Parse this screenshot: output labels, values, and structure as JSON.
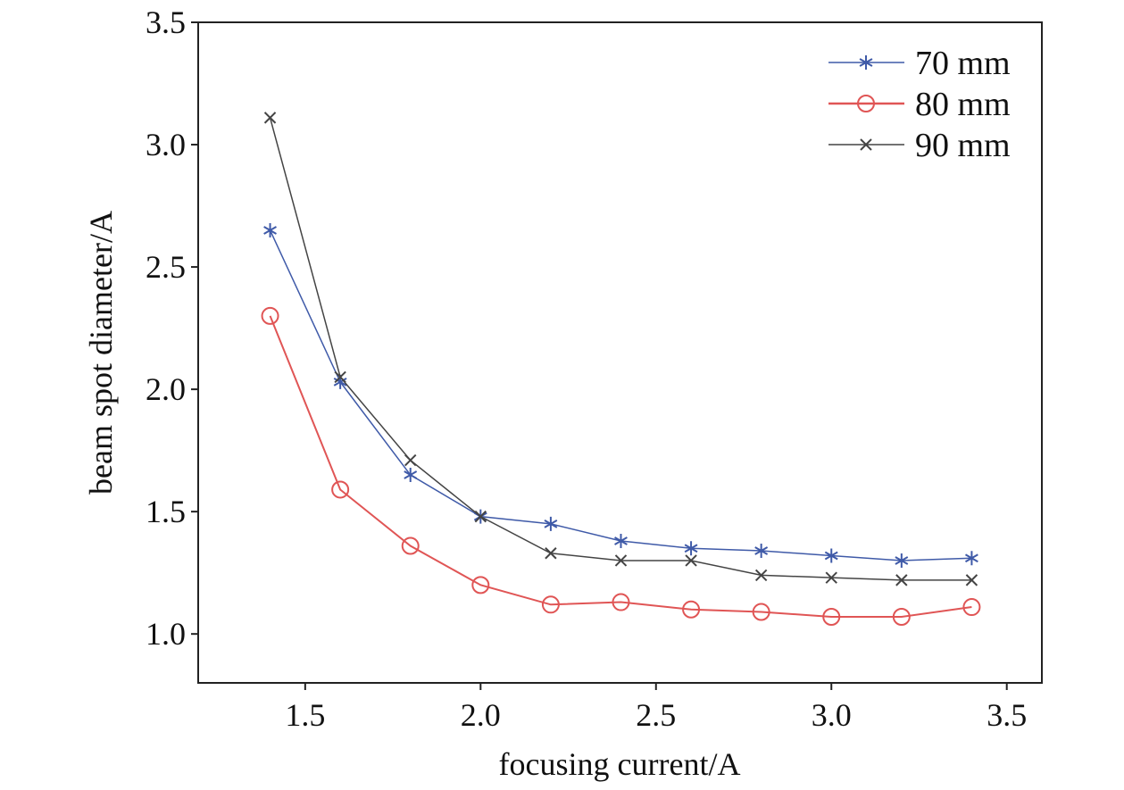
{
  "chart_data": {
    "type": "line",
    "title": "",
    "xlabel": "focusing current/A",
    "ylabel": "beam spot diameter/A",
    "xlim": [
      1.195,
      3.6
    ],
    "ylim": [
      0.8,
      3.5
    ],
    "xticks": [
      "1.5",
      "2.0",
      "2.5",
      "3.0",
      "3.5"
    ],
    "yticks": [
      "1.0",
      "1.5",
      "2.0",
      "2.5",
      "3.0",
      "3.5"
    ],
    "grid": false,
    "legend_position": "top-right",
    "x": [
      1.4,
      1.6,
      1.8,
      2.0,
      2.2,
      2.4,
      2.6,
      2.8,
      3.0,
      3.2,
      3.4
    ],
    "series": [
      {
        "name": "70 mm",
        "color": "#3f5aa8",
        "marker": "asterisk",
        "values": [
          2.65,
          2.03,
          1.65,
          1.48,
          1.45,
          1.38,
          1.35,
          1.34,
          1.32,
          1.3,
          1.31
        ]
      },
      {
        "name": "80 mm",
        "color": "#e05555",
        "marker": "circle",
        "values": [
          2.3,
          1.59,
          1.36,
          1.2,
          1.12,
          1.13,
          1.1,
          1.09,
          1.07,
          1.07,
          1.11
        ]
      },
      {
        "name": "90 mm",
        "color": "#444444",
        "marker": "x",
        "values": [
          3.11,
          2.05,
          1.71,
          1.48,
          1.33,
          1.3,
          1.3,
          1.24,
          1.23,
          1.22,
          1.22
        ]
      }
    ]
  }
}
